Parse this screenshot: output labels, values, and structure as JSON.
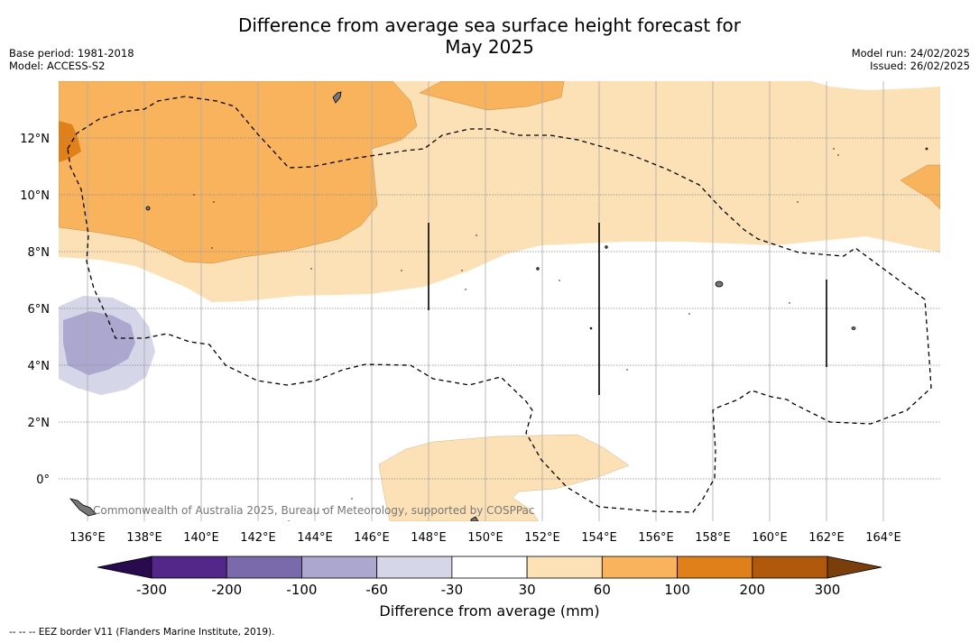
{
  "title_line1": "Difference from average sea surface height forecast for",
  "title_line2": "May 2025",
  "meta_left": [
    "Base period: 1981-2018",
    "Model: ACCESS-S2"
  ],
  "meta_right": [
    "Model run: 24/02/2025",
    "Issued: 26/02/2025"
  ],
  "map": {
    "lon_ticks": [
      "136°E",
      "138°E",
      "140°E",
      "142°E",
      "144°E",
      "146°E",
      "148°E",
      "150°E",
      "152°E",
      "154°E",
      "156°E",
      "158°E",
      "160°E",
      "162°E",
      "164°E"
    ],
    "lat_ticks": [
      "12°N",
      "10°N",
      "8°N",
      "6°N",
      "4°N",
      "2°N",
      "0°"
    ],
    "credit": "Commonwealth of Australia 2025, Bureau of Meteorology, supported by COSPPac"
  },
  "colorbar": {
    "ticks": [
      "-300",
      "-200",
      "-100",
      "-60",
      "-30",
      "30",
      "60",
      "100",
      "200",
      "300"
    ],
    "colors": [
      "#2a0a4e",
      "#53268a",
      "#7b6aab",
      "#aba7cf",
      "#d6d6e9",
      "#ffffff",
      "#fde1b6",
      "#fab35d",
      "#e0801a",
      "#b0580c",
      "#7a3e0b"
    ],
    "label": "Difference from average (mm)"
  },
  "footnote": "--  --  -- EEZ border V11 (Flanders Marine Institute, 2019)."
}
